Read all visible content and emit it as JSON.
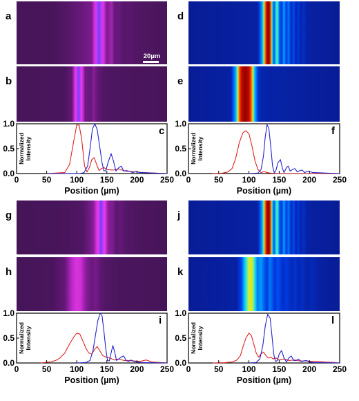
{
  "scale_bar": {
    "label": "20µm"
  },
  "chart_data": [
    {
      "panel": "a",
      "type": "heatmap",
      "colormap": "magenta-experiment",
      "x": [
        0,
        250
      ],
      "profile": [
        [
          0,
          0.05
        ],
        [
          60,
          0.05
        ],
        [
          85,
          0.12
        ],
        [
          125,
          0.3
        ],
        [
          132,
          0.85
        ],
        [
          137,
          1.0
        ],
        [
          142,
          0.85
        ],
        [
          150,
          0.3
        ],
        [
          158,
          0.45
        ],
        [
          163,
          0.2
        ],
        [
          170,
          0.22
        ],
        [
          178,
          0.12
        ],
        [
          186,
          0.15
        ],
        [
          200,
          0.1
        ],
        [
          250,
          0.05
        ]
      ]
    },
    {
      "panel": "b",
      "type": "heatmap",
      "colormap": "magenta-experiment",
      "x": [
        0,
        250
      ],
      "profile": [
        [
          0,
          0.05
        ],
        [
          80,
          0.06
        ],
        [
          92,
          0.2
        ],
        [
          98,
          0.8
        ],
        [
          103,
          1.0
        ],
        [
          108,
          0.8
        ],
        [
          114,
          0.25
        ],
        [
          124,
          0.22
        ],
        [
          128,
          0.35
        ],
        [
          134,
          0.2
        ],
        [
          145,
          0.1
        ],
        [
          160,
          0.08
        ],
        [
          250,
          0.05
        ]
      ]
    },
    {
      "panel": "c",
      "type": "line",
      "xlabel": "Position (µm)",
      "ylabel": "Normalized Intensity",
      "xlim": [
        0,
        250
      ],
      "ylim": [
        0,
        1.0
      ],
      "xticks": [
        0,
        50,
        100,
        150,
        200,
        250
      ],
      "yticks": [
        0.0,
        0.5,
        1.0
      ],
      "series": [
        {
          "color": "#dd2222",
          "x": [
            50,
            80,
            88,
            95,
            100,
            104,
            108,
            113,
            117,
            121,
            125,
            129,
            133,
            137,
            141,
            145,
            150,
            160,
            170,
            180,
            190,
            200,
            210,
            250
          ],
          "y": [
            0,
            0.02,
            0.18,
            0.65,
            0.98,
            0.97,
            0.7,
            0.15,
            0.03,
            0.12,
            0.28,
            0.32,
            0.18,
            0.06,
            0.1,
            0.12,
            0.08,
            0.07,
            0.09,
            0.05,
            0.04,
            0.03,
            0.02,
            0
          ]
        },
        {
          "color": "#2222cc",
          "x": [
            50,
            105,
            112,
            118,
            122,
            126,
            130,
            134,
            138,
            142,
            145,
            148,
            152,
            157,
            161,
            165,
            170,
            174,
            178,
            183,
            188,
            193,
            198,
            205,
            250
          ],
          "y": [
            0,
            0,
            0.02,
            0.15,
            0.5,
            0.9,
            1.0,
            0.88,
            0.55,
            0.22,
            0.06,
            0.05,
            0.22,
            0.4,
            0.25,
            0.05,
            0.12,
            0.15,
            0.05,
            0.06,
            0.04,
            0.02,
            0.04,
            0.02,
            0
          ]
        }
      ]
    },
    {
      "panel": "d",
      "type": "heatmap",
      "colormap": "jet-simulation",
      "x": [
        0,
        250
      ],
      "profile": [
        [
          0,
          0
        ],
        [
          115,
          0.02
        ],
        [
          122,
          0.3
        ],
        [
          126,
          0.7
        ],
        [
          129,
          0.95
        ],
        [
          132,
          1.0
        ],
        [
          135,
          0.95
        ],
        [
          138,
          0.5
        ],
        [
          141,
          0.1
        ],
        [
          144,
          0.35
        ],
        [
          147,
          0.55
        ],
        [
          150,
          0.2
        ],
        [
          154,
          0.1
        ],
        [
          158,
          0.3
        ],
        [
          161,
          0.1
        ],
        [
          166,
          0.22
        ],
        [
          170,
          0.05
        ],
        [
          174,
          0.15
        ],
        [
          178,
          0.04
        ],
        [
          182,
          0.1
        ],
        [
          186,
          0.03
        ],
        [
          190,
          0.07
        ],
        [
          196,
          0.02
        ],
        [
          250,
          0
        ]
      ]
    },
    {
      "panel": "e",
      "type": "heatmap",
      "colormap": "jet-simulation",
      "x": [
        0,
        250
      ],
      "profile": [
        [
          0,
          0
        ],
        [
          70,
          0.02
        ],
        [
          78,
          0.3
        ],
        [
          84,
          0.8
        ],
        [
          88,
          0.95
        ],
        [
          94,
          1.0
        ],
        [
          100,
          0.95
        ],
        [
          104,
          0.8
        ],
        [
          110,
          0.3
        ],
        [
          116,
          0.06
        ],
        [
          122,
          0.03
        ],
        [
          250,
          0
        ]
      ]
    },
    {
      "panel": "f",
      "type": "line",
      "xlabel": "Position (µm)",
      "ylabel": "Normalized Intensity",
      "xlim": [
        0,
        250
      ],
      "ylim": [
        0,
        1.0
      ],
      "xticks": [
        0,
        50,
        100,
        150,
        200,
        250
      ],
      "yticks": [
        0.0,
        0.5,
        1.0
      ],
      "series": [
        {
          "color": "#dd2222",
          "x": [
            40,
            55,
            65,
            72,
            78,
            84,
            90,
            95,
            100,
            105,
            110,
            115,
            120,
            125,
            130,
            135,
            145,
            250
          ],
          "y": [
            0,
            0.005,
            0.03,
            0.1,
            0.3,
            0.62,
            0.82,
            0.86,
            0.8,
            0.55,
            0.25,
            0.08,
            0.02,
            0.04,
            0.02,
            0.01,
            0,
            0
          ]
        },
        {
          "color": "#2222cc",
          "x": [
            100,
            115,
            120,
            124,
            127,
            130,
            133,
            136,
            139,
            142,
            145,
            148,
            152,
            155,
            158,
            162,
            165,
            168,
            172,
            176,
            180,
            184,
            188,
            192,
            196,
            200,
            206,
            250
          ],
          "y": [
            0,
            0.01,
            0.08,
            0.35,
            0.75,
            0.98,
            0.9,
            0.55,
            0.15,
            0.01,
            0.08,
            0.22,
            0.28,
            0.12,
            0.02,
            0.12,
            0.15,
            0.05,
            0.08,
            0.1,
            0.03,
            0.06,
            0.07,
            0.02,
            0.04,
            0.04,
            0.02,
            0
          ]
        }
      ]
    },
    {
      "panel": "g",
      "type": "heatmap",
      "colormap": "magenta-experiment",
      "x": [
        0,
        250
      ],
      "profile": [
        [
          0,
          0.04
        ],
        [
          70,
          0.05
        ],
        [
          110,
          0.1
        ],
        [
          128,
          0.35
        ],
        [
          134,
          0.75
        ],
        [
          140,
          1.0
        ],
        [
          146,
          0.8
        ],
        [
          152,
          0.35
        ],
        [
          160,
          0.3
        ],
        [
          166,
          0.15
        ],
        [
          172,
          0.2
        ],
        [
          182,
          0.12
        ],
        [
          200,
          0.08
        ],
        [
          250,
          0.04
        ]
      ]
    },
    {
      "panel": "h",
      "type": "heatmap",
      "colormap": "magenta-experiment",
      "x": [
        0,
        250
      ],
      "profile": [
        [
          0,
          0.04
        ],
        [
          60,
          0.06
        ],
        [
          80,
          0.2
        ],
        [
          92,
          0.55
        ],
        [
          100,
          0.7
        ],
        [
          106,
          0.65
        ],
        [
          115,
          0.35
        ],
        [
          125,
          0.22
        ],
        [
          132,
          0.28
        ],
        [
          140,
          0.15
        ],
        [
          150,
          0.1
        ],
        [
          170,
          0.07
        ],
        [
          250,
          0.04
        ]
      ]
    },
    {
      "panel": "i",
      "type": "line",
      "xlabel": "Position (µm)",
      "ylabel": "Normalized Intensity",
      "xlim": [
        0,
        250
      ],
      "ylim": [
        0,
        1.0
      ],
      "xticks": [
        0,
        50,
        100,
        150,
        200,
        250
      ],
      "yticks": [
        0.0,
        0.5,
        1.0
      ],
      "series": [
        {
          "color": "#dd2222",
          "x": [
            40,
            55,
            65,
            72,
            80,
            88,
            95,
            100,
            105,
            110,
            115,
            120,
            125,
            130,
            134,
            138,
            143,
            148,
            155,
            162,
            170,
            178,
            186,
            195,
            205,
            215,
            225,
            250
          ],
          "y": [
            0,
            0.02,
            0.05,
            0.1,
            0.2,
            0.38,
            0.52,
            0.6,
            0.58,
            0.45,
            0.3,
            0.2,
            0.18,
            0.28,
            0.33,
            0.25,
            0.15,
            0.12,
            0.1,
            0.06,
            0.08,
            0.05,
            0.05,
            0.04,
            0.03,
            0.06,
            0.02,
            0
          ]
        },
        {
          "color": "#2222cc",
          "x": [
            100,
            115,
            122,
            127,
            131,
            135,
            139,
            142,
            145,
            148,
            151,
            154,
            157,
            160,
            163,
            166,
            170,
            174,
            178,
            182,
            186,
            190,
            195,
            200,
            206,
            250
          ],
          "y": [
            0,
            0.01,
            0.05,
            0.25,
            0.55,
            0.85,
            1.0,
            0.95,
            0.65,
            0.3,
            0.05,
            0.04,
            0.2,
            0.35,
            0.22,
            0.05,
            0.08,
            0.12,
            0.14,
            0.05,
            0.03,
            0.06,
            0.03,
            0.02,
            0.01,
            0
          ]
        }
      ]
    },
    {
      "panel": "j",
      "type": "heatmap",
      "colormap": "jet-simulation",
      "x": [
        0,
        250
      ],
      "profile": [
        [
          0,
          0
        ],
        [
          115,
          0.02
        ],
        [
          122,
          0.3
        ],
        [
          126,
          0.7
        ],
        [
          129,
          0.95
        ],
        [
          132,
          1.0
        ],
        [
          135,
          0.95
        ],
        [
          138,
          0.5
        ],
        [
          141,
          0.1
        ],
        [
          144,
          0.35
        ],
        [
          147,
          0.55
        ],
        [
          150,
          0.2
        ],
        [
          154,
          0.1
        ],
        [
          158,
          0.3
        ],
        [
          161,
          0.1
        ],
        [
          166,
          0.22
        ],
        [
          170,
          0.05
        ],
        [
          174,
          0.15
        ],
        [
          178,
          0.04
        ],
        [
          182,
          0.1
        ],
        [
          186,
          0.03
        ],
        [
          190,
          0.07
        ],
        [
          196,
          0.02
        ],
        [
          250,
          0
        ]
      ]
    },
    {
      "panel": "k",
      "type": "heatmap",
      "colormap": "jet-simulation",
      "x": [
        0,
        250
      ],
      "profile": [
        [
          0,
          0
        ],
        [
          80,
          0.02
        ],
        [
          88,
          0.15
        ],
        [
          94,
          0.4
        ],
        [
          100,
          0.6
        ],
        [
          104,
          0.62
        ],
        [
          108,
          0.5
        ],
        [
          114,
          0.22
        ],
        [
          120,
          0.28
        ],
        [
          124,
          0.2
        ],
        [
          130,
          0.1
        ],
        [
          134,
          0.22
        ],
        [
          138,
          0.18
        ],
        [
          143,
          0.08
        ],
        [
          147,
          0.16
        ],
        [
          152,
          0.12
        ],
        [
          157,
          0.06
        ],
        [
          161,
          0.12
        ],
        [
          166,
          0.08
        ],
        [
          172,
          0.05
        ],
        [
          176,
          0.09
        ],
        [
          182,
          0.04
        ],
        [
          188,
          0.07
        ],
        [
          196,
          0.03
        ],
        [
          205,
          0.05
        ],
        [
          215,
          0.02
        ],
        [
          250,
          0
        ]
      ]
    },
    {
      "panel": "l",
      "type": "line",
      "xlabel": "Position (µm)",
      "ylabel": "Normalized Intensity",
      "xlim": [
        0,
        250
      ],
      "ylim": [
        0,
        1.0
      ],
      "xticks": [
        0,
        50,
        100,
        150,
        200,
        250
      ],
      "yticks": [
        0.0,
        0.5,
        1.0
      ],
      "series": [
        {
          "color": "#dd2222",
          "x": [
            40,
            60,
            72,
            80,
            86,
            90,
            95,
            100,
            104,
            108,
            112,
            116,
            120,
            124,
            128,
            132,
            136,
            140,
            145,
            150,
            158,
            166,
            175,
            185,
            195,
            205,
            215,
            225,
            240,
            250
          ],
          "y": [
            0,
            0.005,
            0.02,
            0.06,
            0.15,
            0.32,
            0.5,
            0.6,
            0.55,
            0.38,
            0.2,
            0.12,
            0.18,
            0.22,
            0.15,
            0.1,
            0.12,
            0.08,
            0.1,
            0.06,
            0.08,
            0.05,
            0.06,
            0.04,
            0.04,
            0.03,
            0.03,
            0.02,
            0.01,
            0
          ]
        },
        {
          "color": "#2222cc",
          "x": [
            100,
            112,
            118,
            123,
            127,
            131,
            135,
            138,
            141,
            144,
            147,
            150,
            154,
            158,
            162,
            166,
            170,
            174,
            178,
            182,
            186,
            190,
            195,
            200,
            206,
            250
          ],
          "y": [
            0,
            0.01,
            0.08,
            0.35,
            0.75,
            0.98,
            0.9,
            0.55,
            0.18,
            0.03,
            0.05,
            0.18,
            0.25,
            0.1,
            0.02,
            0.1,
            0.14,
            0.05,
            0.05,
            0.08,
            0.03,
            0.04,
            0.05,
            0.02,
            0.01,
            0
          ]
        }
      ]
    }
  ]
}
